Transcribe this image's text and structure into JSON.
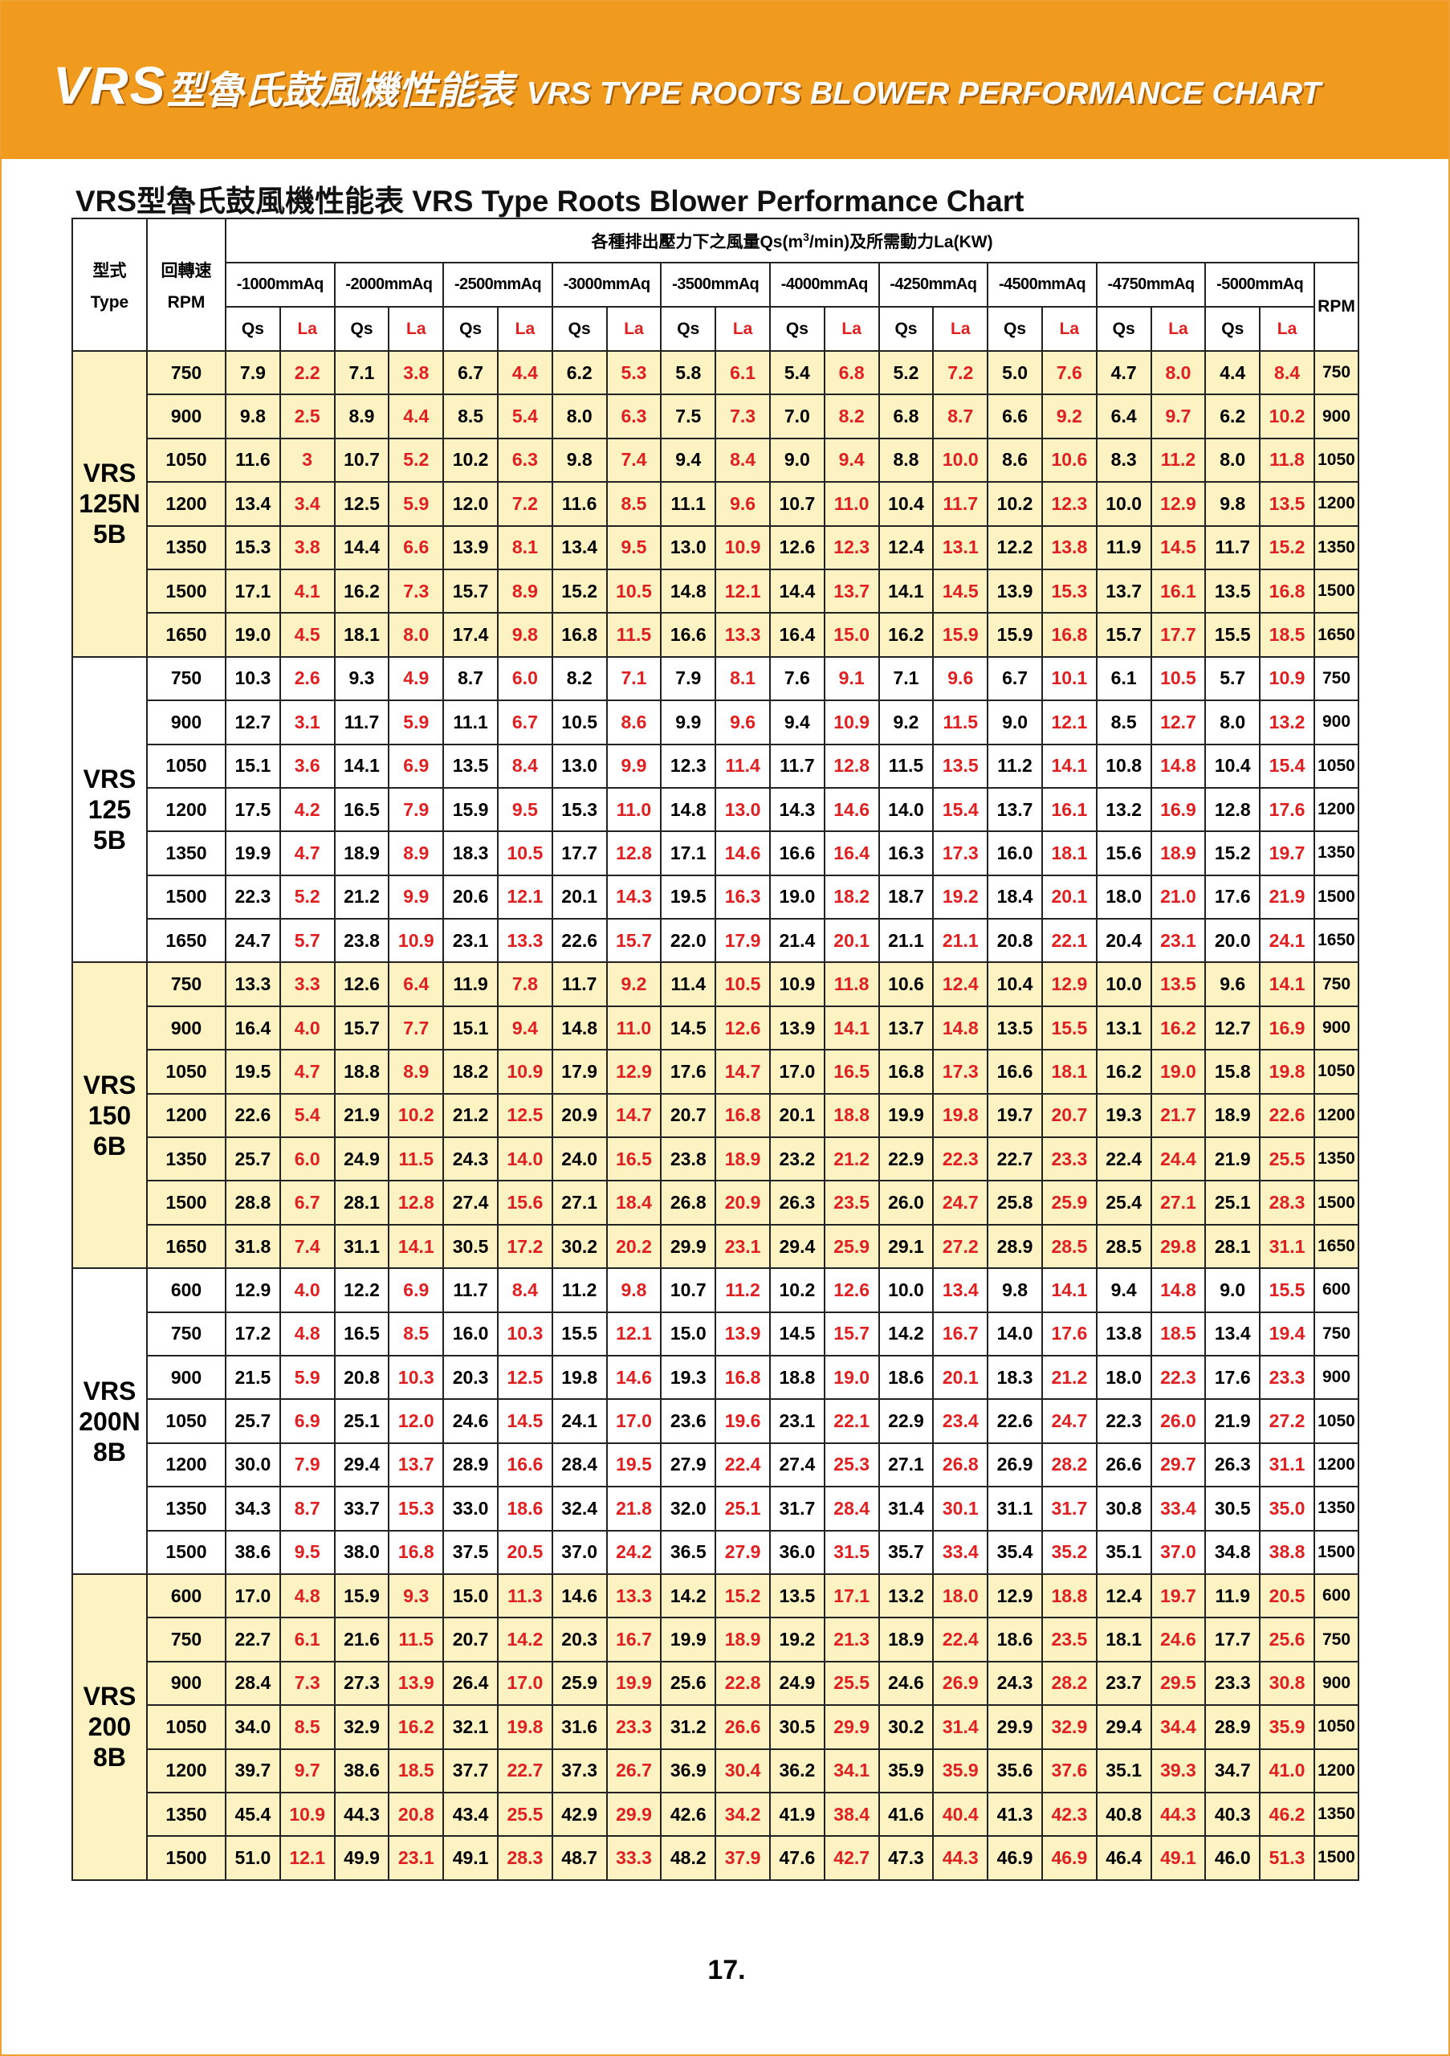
{
  "banner": {
    "prefix": "VRS",
    "chinese": "型魯氏鼓風機性能表",
    "english": "VRS TYPE ROOTS BLOWER PERFORMANCE CHART"
  },
  "subtitle": "VRS型魯氏鼓風機性能表 VRS Type Roots Blower Performance Chart",
  "table": {
    "type_label_zh": "型式",
    "type_label_en": "Type",
    "rpm_label_zh": "回轉速",
    "rpm_label_en": "RPM",
    "caption": {
      "pre": "各種排出壓力下之風量Qs(m",
      "sup": "3",
      "post": "/min)及所需動力La(KW)"
    },
    "pressures": [
      "-1000mmAq",
      "-2000mmAq",
      "-2500mmAq",
      "-3000mmAq",
      "-3500mmAq",
      "-4000mmAq",
      "-4250mmAq",
      "-4500mmAq",
      "-4750mmAq",
      "-5000mmAq"
    ],
    "qs_label": "Qs",
    "la_label": "La",
    "rpm_right_label": "RPM",
    "groups": [
      {
        "name": [
          "VRS",
          "125N",
          "5B"
        ],
        "rows": [
          {
            "rpm": 750,
            "values": [
              "7.9",
              "2.2",
              "7.1",
              "3.8",
              "6.7",
              "4.4",
              "6.2",
              "5.3",
              "5.8",
              "6.1",
              "5.4",
              "6.8",
              "5.2",
              "7.2",
              "5.0",
              "7.6",
              "4.7",
              "8.0",
              "4.4",
              "8.4"
            ]
          },
          {
            "rpm": 900,
            "values": [
              "9.8",
              "2.5",
              "8.9",
              "4.4",
              "8.5",
              "5.4",
              "8.0",
              "6.3",
              "7.5",
              "7.3",
              "7.0",
              "8.2",
              "6.8",
              "8.7",
              "6.6",
              "9.2",
              "6.4",
              "9.7",
              "6.2",
              "10.2"
            ]
          },
          {
            "rpm": 1050,
            "values": [
              "11.6",
              "3",
              "10.7",
              "5.2",
              "10.2",
              "6.3",
              "9.8",
              "7.4",
              "9.4",
              "8.4",
              "9.0",
              "9.4",
              "8.8",
              "10.0",
              "8.6",
              "10.6",
              "8.3",
              "11.2",
              "8.0",
              "11.8"
            ]
          },
          {
            "rpm": 1200,
            "values": [
              "13.4",
              "3.4",
              "12.5",
              "5.9",
              "12.0",
              "7.2",
              "11.6",
              "8.5",
              "11.1",
              "9.6",
              "10.7",
              "11.0",
              "10.4",
              "11.7",
              "10.2",
              "12.3",
              "10.0",
              "12.9",
              "9.8",
              "13.5"
            ]
          },
          {
            "rpm": 1350,
            "values": [
              "15.3",
              "3.8",
              "14.4",
              "6.6",
              "13.9",
              "8.1",
              "13.4",
              "9.5",
              "13.0",
              "10.9",
              "12.6",
              "12.3",
              "12.4",
              "13.1",
              "12.2",
              "13.8",
              "11.9",
              "14.5",
              "11.7",
              "15.2"
            ]
          },
          {
            "rpm": 1500,
            "values": [
              "17.1",
              "4.1",
              "16.2",
              "7.3",
              "15.7",
              "8.9",
              "15.2",
              "10.5",
              "14.8",
              "12.1",
              "14.4",
              "13.7",
              "14.1",
              "14.5",
              "13.9",
              "15.3",
              "13.7",
              "16.1",
              "13.5",
              "16.8"
            ]
          },
          {
            "rpm": 1650,
            "values": [
              "19.0",
              "4.5",
              "18.1",
              "8.0",
              "17.4",
              "9.8",
              "16.8",
              "11.5",
              "16.6",
              "13.3",
              "16.4",
              "15.0",
              "16.2",
              "15.9",
              "15.9",
              "16.8",
              "15.7",
              "17.7",
              "15.5",
              "18.5"
            ]
          }
        ]
      },
      {
        "name": [
          "VRS",
          "125",
          "5B"
        ],
        "rows": [
          {
            "rpm": 750,
            "values": [
              "10.3",
              "2.6",
              "9.3",
              "4.9",
              "8.7",
              "6.0",
              "8.2",
              "7.1",
              "7.9",
              "8.1",
              "7.6",
              "9.1",
              "7.1",
              "9.6",
              "6.7",
              "10.1",
              "6.1",
              "10.5",
              "5.7",
              "10.9"
            ]
          },
          {
            "rpm": 900,
            "values": [
              "12.7",
              "3.1",
              "11.7",
              "5.9",
              "11.1",
              "6.7",
              "10.5",
              "8.6",
              "9.9",
              "9.6",
              "9.4",
              "10.9",
              "9.2",
              "11.5",
              "9.0",
              "12.1",
              "8.5",
              "12.7",
              "8.0",
              "13.2"
            ]
          },
          {
            "rpm": 1050,
            "values": [
              "15.1",
              "3.6",
              "14.1",
              "6.9",
              "13.5",
              "8.4",
              "13.0",
              "9.9",
              "12.3",
              "11.4",
              "11.7",
              "12.8",
              "11.5",
              "13.5",
              "11.2",
              "14.1",
              "10.8",
              "14.8",
              "10.4",
              "15.4"
            ]
          },
          {
            "rpm": 1200,
            "values": [
              "17.5",
              "4.2",
              "16.5",
              "7.9",
              "15.9",
              "9.5",
              "15.3",
              "11.0",
              "14.8",
              "13.0",
              "14.3",
              "14.6",
              "14.0",
              "15.4",
              "13.7",
              "16.1",
              "13.2",
              "16.9",
              "12.8",
              "17.6"
            ]
          },
          {
            "rpm": 1350,
            "values": [
              "19.9",
              "4.7",
              "18.9",
              "8.9",
              "18.3",
              "10.5",
              "17.7",
              "12.8",
              "17.1",
              "14.6",
              "16.6",
              "16.4",
              "16.3",
              "17.3",
              "16.0",
              "18.1",
              "15.6",
              "18.9",
              "15.2",
              "19.7"
            ]
          },
          {
            "rpm": 1500,
            "values": [
              "22.3",
              "5.2",
              "21.2",
              "9.9",
              "20.6",
              "12.1",
              "20.1",
              "14.3",
              "19.5",
              "16.3",
              "19.0",
              "18.2",
              "18.7",
              "19.2",
              "18.4",
              "20.1",
              "18.0",
              "21.0",
              "17.6",
              "21.9"
            ]
          },
          {
            "rpm": 1650,
            "values": [
              "24.7",
              "5.7",
              "23.8",
              "10.9",
              "23.1",
              "13.3",
              "22.6",
              "15.7",
              "22.0",
              "17.9",
              "21.4",
              "20.1",
              "21.1",
              "21.1",
              "20.8",
              "22.1",
              "20.4",
              "23.1",
              "20.0",
              "24.1"
            ]
          }
        ]
      },
      {
        "name": [
          "VRS",
          "150",
          "6B"
        ],
        "rows": [
          {
            "rpm": 750,
            "values": [
              "13.3",
              "3.3",
              "12.6",
              "6.4",
              "11.9",
              "7.8",
              "11.7",
              "9.2",
              "11.4",
              "10.5",
              "10.9",
              "11.8",
              "10.6",
              "12.4",
              "10.4",
              "12.9",
              "10.0",
              "13.5",
              "9.6",
              "14.1"
            ]
          },
          {
            "rpm": 900,
            "values": [
              "16.4",
              "4.0",
              "15.7",
              "7.7",
              "15.1",
              "9.4",
              "14.8",
              "11.0",
              "14.5",
              "12.6",
              "13.9",
              "14.1",
              "13.7",
              "14.8",
              "13.5",
              "15.5",
              "13.1",
              "16.2",
              "12.7",
              "16.9"
            ]
          },
          {
            "rpm": 1050,
            "values": [
              "19.5",
              "4.7",
              "18.8",
              "8.9",
              "18.2",
              "10.9",
              "17.9",
              "12.9",
              "17.6",
              "14.7",
              "17.0",
              "16.5",
              "16.8",
              "17.3",
              "16.6",
              "18.1",
              "16.2",
              "19.0",
              "15.8",
              "19.8"
            ]
          },
          {
            "rpm": 1200,
            "values": [
              "22.6",
              "5.4",
              "21.9",
              "10.2",
              "21.2",
              "12.5",
              "20.9",
              "14.7",
              "20.7",
              "16.8",
              "20.1",
              "18.8",
              "19.9",
              "19.8",
              "19.7",
              "20.7",
              "19.3",
              "21.7",
              "18.9",
              "22.6"
            ]
          },
          {
            "rpm": 1350,
            "values": [
              "25.7",
              "6.0",
              "24.9",
              "11.5",
              "24.3",
              "14.0",
              "24.0",
              "16.5",
              "23.8",
              "18.9",
              "23.2",
              "21.2",
              "22.9",
              "22.3",
              "22.7",
              "23.3",
              "22.4",
              "24.4",
              "21.9",
              "25.5"
            ]
          },
          {
            "rpm": 1500,
            "values": [
              "28.8",
              "6.7",
              "28.1",
              "12.8",
              "27.4",
              "15.6",
              "27.1",
              "18.4",
              "26.8",
              "20.9",
              "26.3",
              "23.5",
              "26.0",
              "24.7",
              "25.8",
              "25.9",
              "25.4",
              "27.1",
              "25.1",
              "28.3"
            ]
          },
          {
            "rpm": 1650,
            "values": [
              "31.8",
              "7.4",
              "31.1",
              "14.1",
              "30.5",
              "17.2",
              "30.2",
              "20.2",
              "29.9",
              "23.1",
              "29.4",
              "25.9",
              "29.1",
              "27.2",
              "28.9",
              "28.5",
              "28.5",
              "29.8",
              "28.1",
              "31.1"
            ]
          }
        ]
      },
      {
        "name": [
          "VRS",
          "200N",
          "8B"
        ],
        "rows": [
          {
            "rpm": 600,
            "values": [
              "12.9",
              "4.0",
              "12.2",
              "6.9",
              "11.7",
              "8.4",
              "11.2",
              "9.8",
              "10.7",
              "11.2",
              "10.2",
              "12.6",
              "10.0",
              "13.4",
              "9.8",
              "14.1",
              "9.4",
              "14.8",
              "9.0",
              "15.5"
            ]
          },
          {
            "rpm": 750,
            "values": [
              "17.2",
              "4.8",
              "16.5",
              "8.5",
              "16.0",
              "10.3",
              "15.5",
              "12.1",
              "15.0",
              "13.9",
              "14.5",
              "15.7",
              "14.2",
              "16.7",
              "14.0",
              "17.6",
              "13.8",
              "18.5",
              "13.4",
              "19.4"
            ]
          },
          {
            "rpm": 900,
            "values": [
              "21.5",
              "5.9",
              "20.8",
              "10.3",
              "20.3",
              "12.5",
              "19.8",
              "14.6",
              "19.3",
              "16.8",
              "18.8",
              "19.0",
              "18.6",
              "20.1",
              "18.3",
              "21.2",
              "18.0",
              "22.3",
              "17.6",
              "23.3"
            ]
          },
          {
            "rpm": 1050,
            "values": [
              "25.7",
              "6.9",
              "25.1",
              "12.0",
              "24.6",
              "14.5",
              "24.1",
              "17.0",
              "23.6",
              "19.6",
              "23.1",
              "22.1",
              "22.9",
              "23.4",
              "22.6",
              "24.7",
              "22.3",
              "26.0",
              "21.9",
              "27.2"
            ]
          },
          {
            "rpm": 1200,
            "values": [
              "30.0",
              "7.9",
              "29.4",
              "13.7",
              "28.9",
              "16.6",
              "28.4",
              "19.5",
              "27.9",
              "22.4",
              "27.4",
              "25.3",
              "27.1",
              "26.8",
              "26.9",
              "28.2",
              "26.6",
              "29.7",
              "26.3",
              "31.1"
            ]
          },
          {
            "rpm": 1350,
            "values": [
              "34.3",
              "8.7",
              "33.7",
              "15.3",
              "33.0",
              "18.6",
              "32.4",
              "21.8",
              "32.0",
              "25.1",
              "31.7",
              "28.4",
              "31.4",
              "30.1",
              "31.1",
              "31.7",
              "30.8",
              "33.4",
              "30.5",
              "35.0"
            ]
          },
          {
            "rpm": 1500,
            "values": [
              "38.6",
              "9.5",
              "38.0",
              "16.8",
              "37.5",
              "20.5",
              "37.0",
              "24.2",
              "36.5",
              "27.9",
              "36.0",
              "31.5",
              "35.7",
              "33.4",
              "35.4",
              "35.2",
              "35.1",
              "37.0",
              "34.8",
              "38.8"
            ]
          }
        ]
      },
      {
        "name": [
          "VRS",
          "200",
          "8B"
        ],
        "rows": [
          {
            "rpm": 600,
            "values": [
              "17.0",
              "4.8",
              "15.9",
              "9.3",
              "15.0",
              "11.3",
              "14.6",
              "13.3",
              "14.2",
              "15.2",
              "13.5",
              "17.1",
              "13.2",
              "18.0",
              "12.9",
              "18.8",
              "12.4",
              "19.7",
              "11.9",
              "20.5"
            ]
          },
          {
            "rpm": 750,
            "values": [
              "22.7",
              "6.1",
              "21.6",
              "11.5",
              "20.7",
              "14.2",
              "20.3",
              "16.7",
              "19.9",
              "18.9",
              "19.2",
              "21.3",
              "18.9",
              "22.4",
              "18.6",
              "23.5",
              "18.1",
              "24.6",
              "17.7",
              "25.6"
            ]
          },
          {
            "rpm": 900,
            "values": [
              "28.4",
              "7.3",
              "27.3",
              "13.9",
              "26.4",
              "17.0",
              "25.9",
              "19.9",
              "25.6",
              "22.8",
              "24.9",
              "25.5",
              "24.6",
              "26.9",
              "24.3",
              "28.2",
              "23.7",
              "29.5",
              "23.3",
              "30.8"
            ]
          },
          {
            "rpm": 1050,
            "values": [
              "34.0",
              "8.5",
              "32.9",
              "16.2",
              "32.1",
              "19.8",
              "31.6",
              "23.3",
              "31.2",
              "26.6",
              "30.5",
              "29.9",
              "30.2",
              "31.4",
              "29.9",
              "32.9",
              "29.4",
              "34.4",
              "28.9",
              "35.9"
            ]
          },
          {
            "rpm": 1200,
            "values": [
              "39.7",
              "9.7",
              "38.6",
              "18.5",
              "37.7",
              "22.7",
              "37.3",
              "26.7",
              "36.9",
              "30.4",
              "36.2",
              "34.1",
              "35.9",
              "35.9",
              "35.6",
              "37.6",
              "35.1",
              "39.3",
              "34.7",
              "41.0"
            ]
          },
          {
            "rpm": 1350,
            "values": [
              "45.4",
              "10.9",
              "44.3",
              "20.8",
              "43.4",
              "25.5",
              "42.9",
              "29.9",
              "42.6",
              "34.2",
              "41.9",
              "38.4",
              "41.6",
              "40.4",
              "41.3",
              "42.3",
              "40.8",
              "44.3",
              "40.3",
              "46.2"
            ]
          },
          {
            "rpm": 1500,
            "values": [
              "51.0",
              "12.1",
              "49.9",
              "23.1",
              "49.1",
              "28.3",
              "48.7",
              "33.3",
              "48.2",
              "37.9",
              "47.6",
              "42.7",
              "47.3",
              "44.3",
              "46.9",
              "46.9",
              "46.4",
              "49.1",
              "46.0",
              "51.3"
            ]
          }
        ]
      }
    ]
  },
  "page_number": "17."
}
